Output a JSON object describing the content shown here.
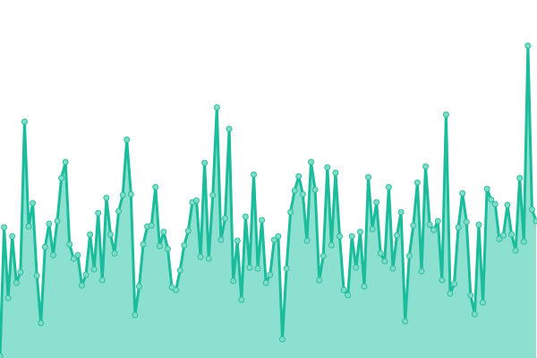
{
  "chart_data": {
    "type": "area",
    "title": "",
    "xlabel": "",
    "ylabel": "",
    "ylim": [
      0,
      400
    ],
    "grid": false,
    "legend": "none",
    "colors": {
      "line": "#1abc9c",
      "fill": "#8be0cf",
      "marker_fill": "#7fdcc8",
      "marker_stroke": "#2fbf9f"
    },
    "values": [
      2,
      146,
      67,
      136,
      84,
      96,
      264,
      147,
      173,
      92,
      39,
      124,
      150,
      115,
      153,
      201,
      219,
      127,
      111,
      115,
      81,
      93,
      138,
      99,
      162,
      87,
      179,
      138,
      117,
      164,
      182,
      244,
      183,
      48,
      80,
      127,
      147,
      148,
      191,
      125,
      141,
      122,
      79,
      76,
      98,
      126,
      142,
      174,
      176,
      113,
      218,
      111,
      182,
      280,
      132,
      156,
      256,
      86,
      131,
      65,
      158,
      101,
      205,
      100,
      154,
      84,
      93,
      132,
      136,
      21,
      100,
      163,
      187,
      203,
      183,
      131,
      219,
      188,
      87,
      114,
      213,
      126,
      207,
      136,
      76,
      70,
      136,
      101,
      141,
      80,
      202,
      144,
      174,
      117,
      108,
      191,
      100,
      137,
      163,
      41,
      114,
      148,
      196,
      97,
      214,
      149,
      143,
      153,
      87,
      272,
      72,
      83,
      146,
      184,
      152,
      70,
      49,
      149,
      62,
      189,
      177,
      172,
      133,
      137,
      171,
      138,
      120,
      201,
      130,
      349,
      166,
      153
    ]
  }
}
